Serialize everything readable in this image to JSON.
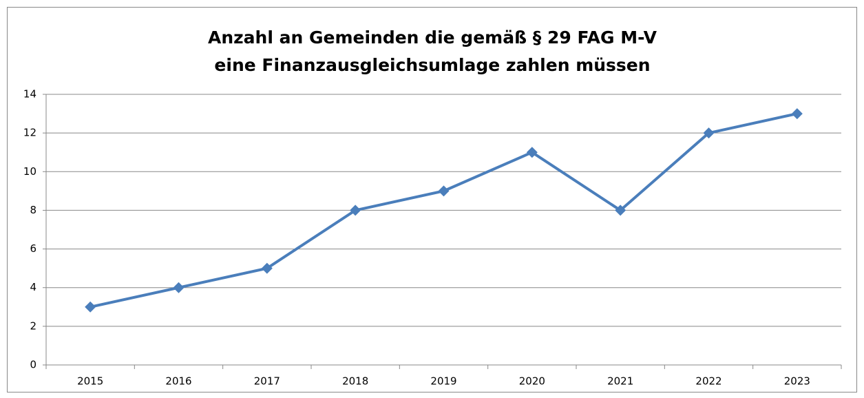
{
  "chart_data": {
    "type": "line",
    "title": [
      "Anzahl an Gemeinden die gemäß § 29 FAG M-V",
      "eine Finanzausgleichsumlage zahlen müssen"
    ],
    "categories": [
      "2015",
      "2016",
      "2017",
      "2018",
      "2019",
      "2020",
      "2021",
      "2022",
      "2023"
    ],
    "values": [
      3,
      4,
      5,
      8,
      9,
      11,
      8,
      12,
      13
    ],
    "color": "#4a7ebb",
    "ylim": [
      0,
      14
    ],
    "yticks": [
      0,
      2,
      4,
      6,
      8,
      10,
      12,
      14
    ],
    "grid": true
  }
}
